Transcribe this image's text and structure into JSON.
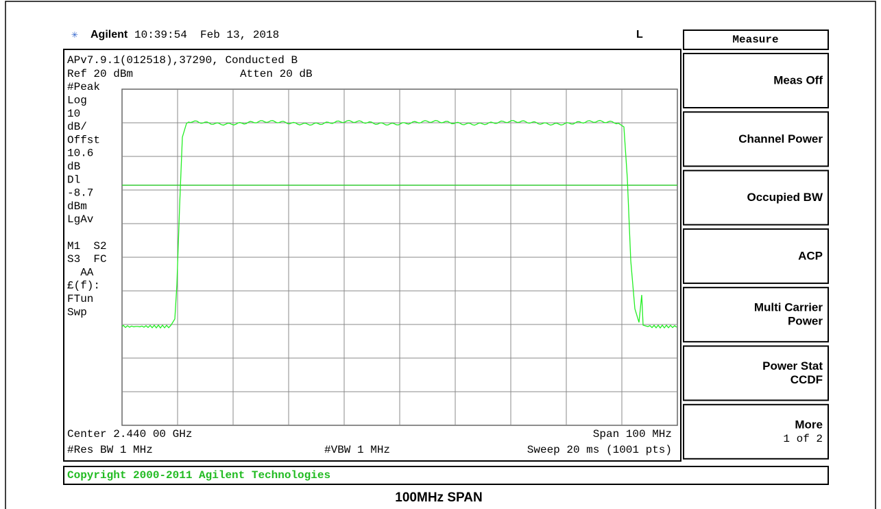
{
  "header": {
    "brand": "Agilent",
    "timestamp": "10:39:54  Feb 13, 2018",
    "indicator": "L"
  },
  "screen": {
    "info_line": "APv7.9.1(012518),37290, Conducted B",
    "ref_level": "Ref 20 dBm",
    "attenuation": "Atten 20 dB",
    "side_labels": [
      "#Peak",
      "Log",
      "10",
      "dB/",
      "Offst",
      "10.6",
      "dB",
      "Dl",
      "-8.7",
      "dBm",
      "LgAv",
      "",
      "M1  S2",
      "S3  FC",
      "  AA",
      "£(f):",
      "FTun",
      "Swp"
    ],
    "center": "Center 2.440 00 GHz",
    "span": "Span 100 MHz",
    "res_bw": "#Res BW 1 MHz",
    "vbw": "#VBW 1 MHz",
    "sweep": "Sweep 20 ms (1001 pts)"
  },
  "copyright": "Copyright 2000-2011 Agilent Technologies",
  "menu": {
    "title": "Measure",
    "keys": [
      [
        "Meas Off"
      ],
      [
        "Channel Power"
      ],
      [
        "Occupied BW"
      ],
      [
        "ACP"
      ],
      [
        "Multi Carrier",
        "Power"
      ],
      [
        "Power Stat",
        "CCDF"
      ],
      [
        "More",
        "1 of 2"
      ]
    ]
  },
  "caption": "100MHz SPAN"
}
